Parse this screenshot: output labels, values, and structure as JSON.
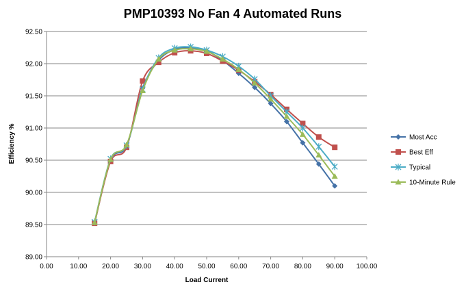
{
  "chart_data": {
    "type": "line",
    "title": "PMP10393 No Fan 4 Automated Runs",
    "xlabel": "Load Current",
    "ylabel": "Efficiency %",
    "xlim": [
      0,
      100
    ],
    "ylim": [
      89.0,
      92.5
    ],
    "x_ticks": [
      "0.00",
      "10.00",
      "20.00",
      "30.00",
      "40.00",
      "50.00",
      "60.00",
      "70.00",
      "80.00",
      "90.00",
      "100.00"
    ],
    "y_ticks": [
      "89.00",
      "89.50",
      "90.00",
      "90.50",
      "91.00",
      "91.50",
      "92.00",
      "92.50"
    ],
    "grid": "horizontal",
    "legend_position": "right",
    "series": [
      {
        "name": "Most Acc",
        "color": "#4572A7",
        "marker": "diamond",
        "x": [
          15,
          20,
          25,
          30,
          35,
          40,
          45,
          50,
          55,
          60,
          65,
          70,
          75,
          80,
          85,
          90
        ],
        "y": [
          89.52,
          90.5,
          90.72,
          91.62,
          92.05,
          92.22,
          92.25,
          92.2,
          92.05,
          91.85,
          91.63,
          91.38,
          91.1,
          90.77,
          90.44,
          90.1
        ]
      },
      {
        "name": "Best Eff",
        "color": "#C0504D",
        "marker": "square",
        "x": [
          15,
          20,
          25,
          30,
          35,
          40,
          45,
          50,
          55,
          60,
          65,
          70,
          75,
          80,
          85,
          90
        ],
        "y": [
          89.52,
          90.48,
          90.7,
          91.73,
          92.02,
          92.17,
          92.2,
          92.16,
          92.04,
          91.9,
          91.72,
          91.52,
          91.29,
          91.07,
          90.86,
          90.7
        ]
      },
      {
        "name": "Typical",
        "color": "#4BACC6",
        "marker": "star",
        "x": [
          15,
          20,
          25,
          30,
          35,
          40,
          45,
          50,
          55,
          60,
          65,
          70,
          75,
          80,
          85,
          90
        ],
        "y": [
          89.54,
          90.52,
          90.73,
          91.6,
          92.09,
          92.24,
          92.26,
          92.21,
          92.11,
          91.96,
          91.76,
          91.5,
          91.25,
          91.0,
          90.71,
          90.4
        ]
      },
      {
        "name": "10-Minute Rule",
        "color": "#9BBB59",
        "marker": "triangle",
        "x": [
          15,
          20,
          25,
          30,
          35,
          40,
          45,
          50,
          55,
          60,
          65,
          70,
          75,
          80,
          85,
          90
        ],
        "y": [
          89.53,
          90.51,
          90.74,
          91.58,
          92.07,
          92.21,
          92.23,
          92.19,
          92.07,
          91.91,
          91.7,
          91.45,
          91.18,
          90.9,
          90.58,
          90.25
        ]
      }
    ]
  }
}
